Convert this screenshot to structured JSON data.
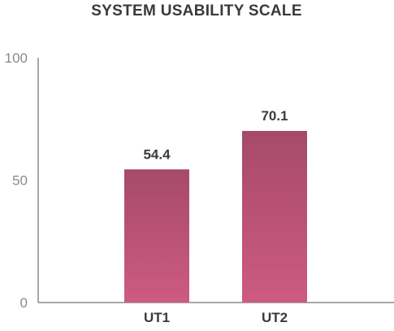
{
  "chart_data": {
    "type": "bar",
    "title": "SYSTEM USABILITY SCALE",
    "xlabel": "",
    "ylabel": "",
    "categories": [
      "UT1",
      "UT2"
    ],
    "values": [
      54.4,
      70.1
    ],
    "value_labels": [
      "54.4",
      "70.1"
    ],
    "ylim": [
      0,
      100
    ],
    "yticks": [
      "0",
      "50",
      "100"
    ],
    "grid": false,
    "legend": "none",
    "colors": {
      "bar_top": "#a64a6a",
      "bar_bottom": "#cd5a82",
      "axis": "#8c8c8c",
      "text": "#3a3a3a",
      "tick_text": "#8a8a8a"
    }
  }
}
